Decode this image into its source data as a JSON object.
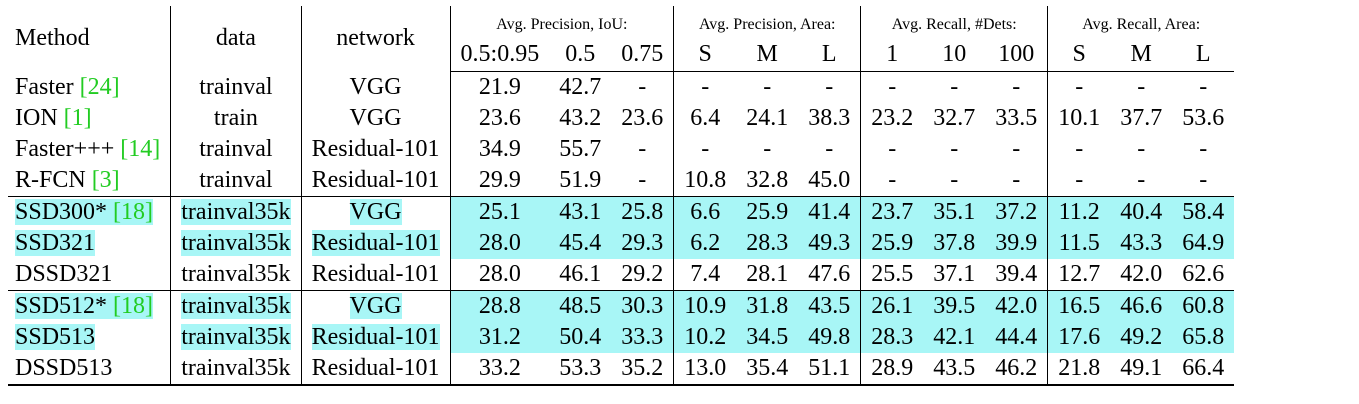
{
  "headers": {
    "method": "Method",
    "data": "data",
    "network": "network",
    "groups": [
      {
        "label": "Avg. Precision, IoU:",
        "subs": [
          "0.5:0.95",
          "0.5",
          "0.75"
        ]
      },
      {
        "label": "Avg. Precision, Area:",
        "subs": [
          "S",
          "M",
          "L"
        ]
      },
      {
        "label": "Avg. Recall, #Dets:",
        "subs": [
          "1",
          "10",
          "100"
        ]
      },
      {
        "label": "Avg. Recall, Area:",
        "subs": [
          "S",
          "M",
          "L"
        ]
      }
    ]
  },
  "colors": {
    "highlight": "#a8f6f6",
    "citation": "#22cc22"
  },
  "rows": [
    {
      "name": "Faster ",
      "cite": "[24]",
      "data": "trainval",
      "network": "VGG",
      "values": [
        "21.9",
        "42.7",
        "-",
        "-",
        "-",
        "-",
        "-",
        "-",
        "-",
        "-",
        "-",
        "-"
      ],
      "highlight": false
    },
    {
      "name": "ION ",
      "cite": "[1]",
      "data": "train",
      "network": "VGG",
      "values": [
        "23.6",
        "43.2",
        "23.6",
        "6.4",
        "24.1",
        "38.3",
        "23.2",
        "32.7",
        "33.5",
        "10.1",
        "37.7",
        "53.6"
      ],
      "highlight": false
    },
    {
      "name": "Faster+++ ",
      "cite": "[14]",
      "data": "trainval",
      "network": "Residual-101",
      "values": [
        "34.9",
        "55.7",
        "-",
        "-",
        "-",
        "-",
        "-",
        "-",
        "-",
        "-",
        "-",
        "-"
      ],
      "highlight": false
    },
    {
      "name": "R-FCN ",
      "cite": "[3]",
      "data": "trainval",
      "network": "Residual-101",
      "values": [
        "29.9",
        "51.9",
        "-",
        "10.8",
        "32.8",
        "45.0",
        "-",
        "-",
        "-",
        "-",
        "-",
        "-"
      ],
      "highlight": false
    },
    {
      "name": "SSD300* ",
      "cite": "[18]",
      "data": "trainval35k",
      "network": "VGG",
      "values": [
        "25.1",
        "43.1",
        "25.8",
        "6.6",
        "25.9",
        "41.4",
        "23.7",
        "35.1",
        "37.2",
        "11.2",
        "40.4",
        "58.4"
      ],
      "highlight": true
    },
    {
      "name": "SSD321",
      "cite": "",
      "data": "trainval35k",
      "network": "Residual-101",
      "values": [
        "28.0",
        "45.4",
        "29.3",
        "6.2",
        "28.3",
        "49.3",
        "25.9",
        "37.8",
        "39.9",
        "11.5",
        "43.3",
        "64.9"
      ],
      "highlight": true
    },
    {
      "name": "DSSD321",
      "cite": "",
      "data": "trainval35k",
      "network": "Residual-101",
      "values": [
        "28.0",
        "46.1",
        "29.2",
        "7.4",
        "28.1",
        "47.6",
        "25.5",
        "37.1",
        "39.4",
        "12.7",
        "42.0",
        "62.6"
      ],
      "highlight": false
    },
    {
      "name": "SSD512* ",
      "cite": "[18]",
      "data": "trainval35k",
      "network": "VGG",
      "values": [
        "28.8",
        "48.5",
        "30.3",
        "10.9",
        "31.8",
        "43.5",
        "26.1",
        "39.5",
        "42.0",
        "16.5",
        "46.6",
        "60.8"
      ],
      "highlight": true
    },
    {
      "name": "SSD513",
      "cite": "",
      "data": "trainval35k",
      "network": "Residual-101",
      "values": [
        "31.2",
        "50.4",
        "33.3",
        "10.2",
        "34.5",
        "49.8",
        "28.3",
        "42.1",
        "44.4",
        "17.6",
        "49.2",
        "65.8"
      ],
      "highlight": true
    },
    {
      "name": "DSSD513",
      "cite": "",
      "data": "trainval35k",
      "network": "Residual-101",
      "values": [
        "33.2",
        "53.3",
        "35.2",
        "13.0",
        "35.4",
        "51.1",
        "28.9",
        "43.5",
        "46.2",
        "21.8",
        "49.1",
        "66.4"
      ],
      "highlight": false
    }
  ]
}
